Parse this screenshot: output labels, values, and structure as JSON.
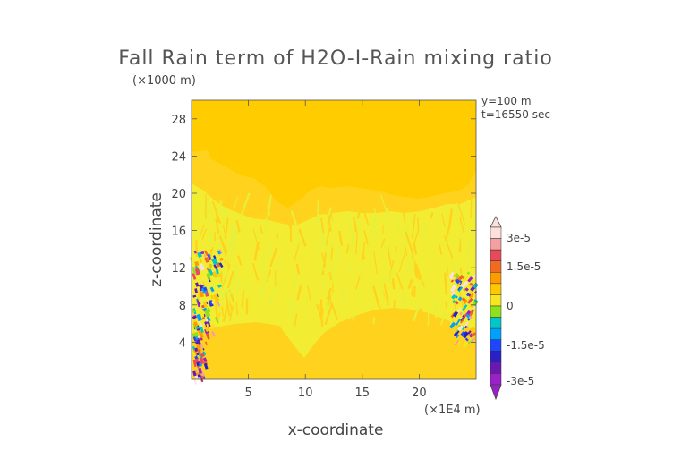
{
  "chart_data": {
    "type": "heatmap",
    "title": "Fall Rain term of H2O-I-Rain mixing ratio",
    "ylabel": "z-coordinate",
    "xlabel": "x-coordinate",
    "y_units": "(×1000 m)",
    "x_units": "(×1E4 m)",
    "annotations": [
      "y=100 m",
      "t=16550 sec"
    ],
    "xlim": [
      0,
      25
    ],
    "ylim": [
      0,
      30
    ],
    "x_ticks": [
      5,
      10,
      15,
      20
    ],
    "y_ticks": [
      4,
      8,
      12,
      16,
      20,
      24,
      28
    ],
    "colorbar": {
      "tick_labels": [
        "3e-5",
        "1.5e-5",
        "0",
        "-1.5e-5",
        "-3e-5"
      ],
      "tick_values": [
        3e-05,
        1.5e-05,
        0,
        -1.5e-05,
        -3e-05
      ],
      "colors": [
        "#fde0dc",
        "#f4a0a0",
        "#e84a5a",
        "#f06a20",
        "#ff9a00",
        "#ffc800",
        "#f5e61e",
        "#8fe11e",
        "#00c8c8",
        "#00a0ff",
        "#1e46ff",
        "#2a20c8",
        "#6a18b4",
        "#9a20c8"
      ]
    },
    "regions": {
      "background_value": 0,
      "upper_boundary_height": 20,
      "active_edges": [
        "left",
        "right"
      ]
    }
  },
  "colors": {
    "background": "#ffcc00",
    "upper_band": "#ffd21e",
    "mid_band": "#f2ec32",
    "lower_band": "#ffd21e"
  }
}
